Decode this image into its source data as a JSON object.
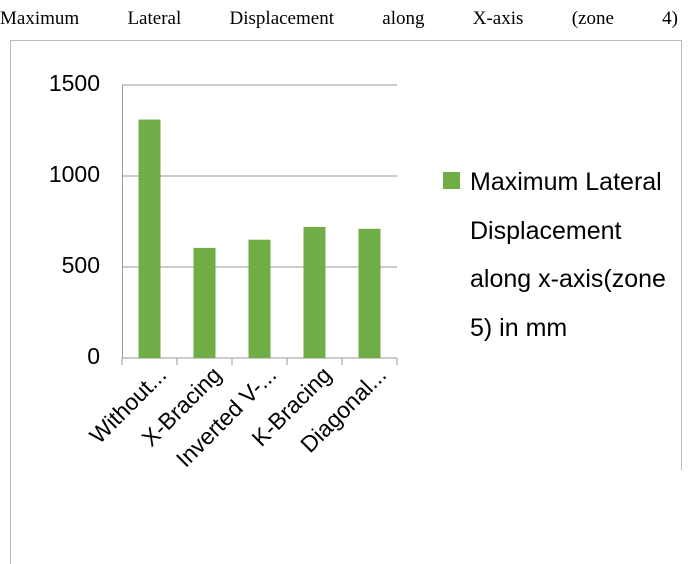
{
  "chart_data": {
    "type": "bar",
    "title": "Maximum Lateral Displacement along X-axis (zone 4)",
    "categories": [
      "Without...",
      "X-Bracing",
      "Inverted V-...",
      "K-Bracing",
      "Diagonal..."
    ],
    "series": [
      {
        "name": "Maximum Lateral Displacement along x-axis(zone 5) in mm",
        "color": "#70ad47",
        "values": [
          1310,
          605,
          650,
          720,
          710
        ]
      }
    ],
    "ylim": [
      0,
      1500
    ],
    "yticks": [
      0,
      500,
      1000,
      1500
    ],
    "grid": true,
    "legend": "right"
  }
}
